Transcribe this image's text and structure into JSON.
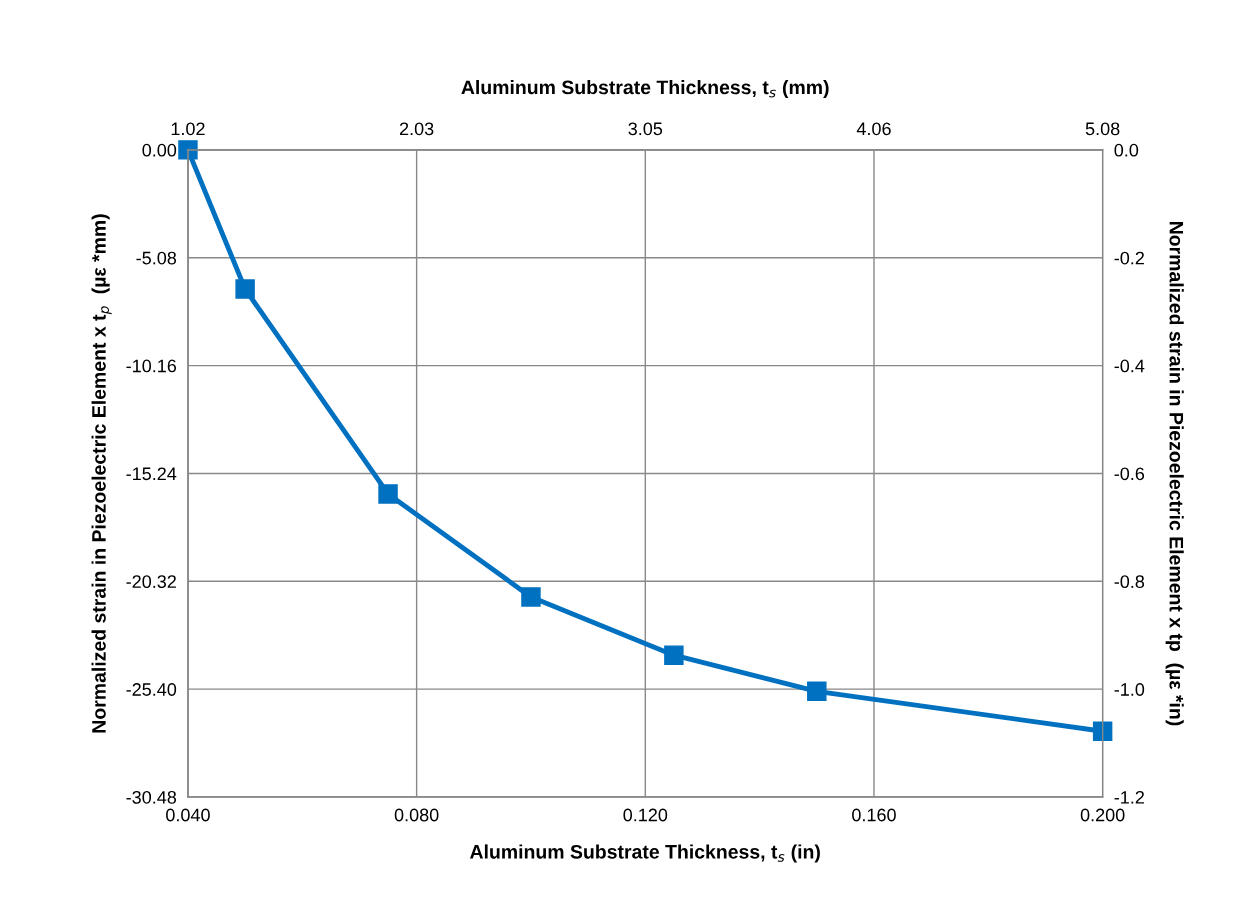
{
  "chart_data": {
    "type": "line",
    "xlabel": "Aluminum Substrate Thickness, t$_{s}$ (in)",
    "x2label": "Aluminum Substrate Thickness, t$_{s}$ (mm)",
    "ylabel": "Normalized strain in Piezoelectric Element x t$_{p}$  (µε *mm)",
    "y2label": "Normalized strain in Piezoelectric Element x tp  (µε *in)",
    "x": [
      0.04,
      0.05,
      0.075,
      0.1,
      0.125,
      0.15,
      0.2
    ],
    "series": [
      {
        "color": "#0070c0",
        "axis": "y2",
        "values": [
          0.0,
          -0.258,
          -0.638,
          -0.829,
          -0.937,
          -1.004,
          -1.078
        ]
      }
    ],
    "xlim": [
      0.04,
      0.2
    ],
    "xticks": [
      {
        "value": 0.04,
        "label": "0.040"
      },
      {
        "value": 0.08,
        "label": "0.080"
      },
      {
        "value": 0.12,
        "label": "0.120"
      },
      {
        "value": 0.16,
        "label": "0.160"
      },
      {
        "value": 0.2,
        "label": "0.200"
      }
    ],
    "x2lim": [
      1.016,
      5.08
    ],
    "x2ticks": [
      {
        "value": 1.016,
        "label": "1.02"
      },
      {
        "value": 2.032,
        "label": "2.03"
      },
      {
        "value": 3.048,
        "label": "3.05"
      },
      {
        "value": 4.064,
        "label": "4.06"
      },
      {
        "value": 5.08,
        "label": "5.08"
      }
    ],
    "ylim": [
      -30.48,
      0
    ],
    "yticks": [
      {
        "value": 0,
        "label": "0.00"
      },
      -5.08,
      -10.16,
      -15.24,
      -20.32,
      {
        "value": -25.4,
        "label": "-25.40"
      },
      -30.48
    ],
    "y2lim": [
      -1.2,
      0
    ],
    "y2ticks": [
      {
        "value": 0,
        "label": "0.0"
      },
      -0.2,
      -0.4,
      -0.6,
      -0.8,
      {
        "value": -1.0,
        "label": "-1.0"
      },
      -1.2
    ],
    "grid": true,
    "marker": "square",
    "line_style": "solid"
  }
}
